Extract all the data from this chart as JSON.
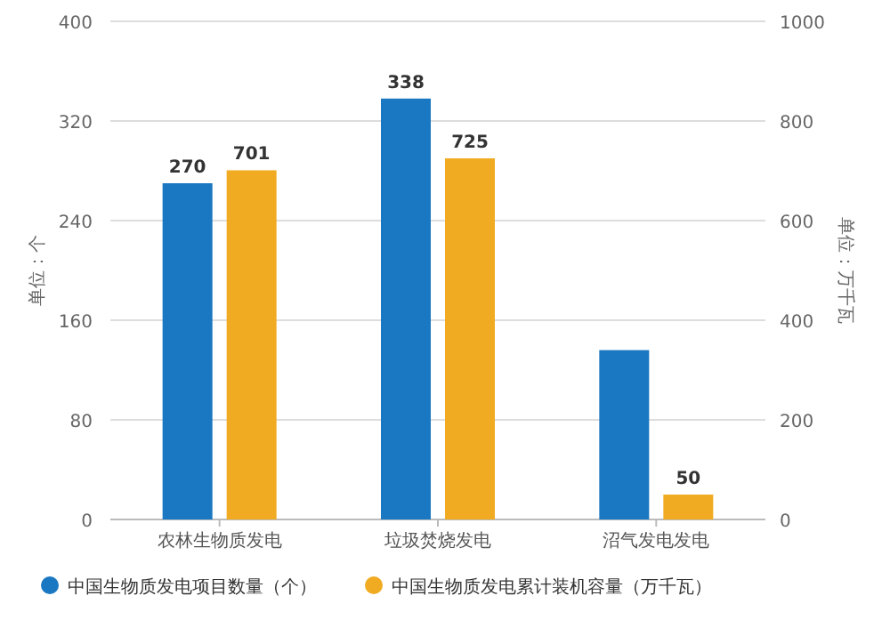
{
  "chart_data": {
    "type": "bar",
    "categories": [
      "农林生物质发电",
      "垃圾焚烧发电",
      "沼气发电发电"
    ],
    "series": [
      {
        "name": "中国生物质发电项目数量（个）",
        "color": "#1a78c2",
        "values": [
          270,
          338,
          136
        ],
        "value_labels": [
          "270",
          "338",
          null
        ]
      },
      {
        "name": "中国生物质发电累计装机容量（万千瓦）",
        "color": "#f0ab22",
        "axis": "y2",
        "values": [
          701,
          725,
          50
        ],
        "value_labels": [
          "701",
          "725",
          "50"
        ]
      }
    ],
    "ylabel": "单位：个",
    "y2label": "单位：万千瓦",
    "ylim": [
      0,
      400
    ],
    "yticks": [
      0,
      80,
      160,
      240,
      320,
      400
    ],
    "y2lim": [
      0,
      1000
    ],
    "y2ticks": [
      0,
      200,
      400,
      600,
      800,
      1000
    ],
    "grid": "y",
    "legend": "bottom"
  }
}
